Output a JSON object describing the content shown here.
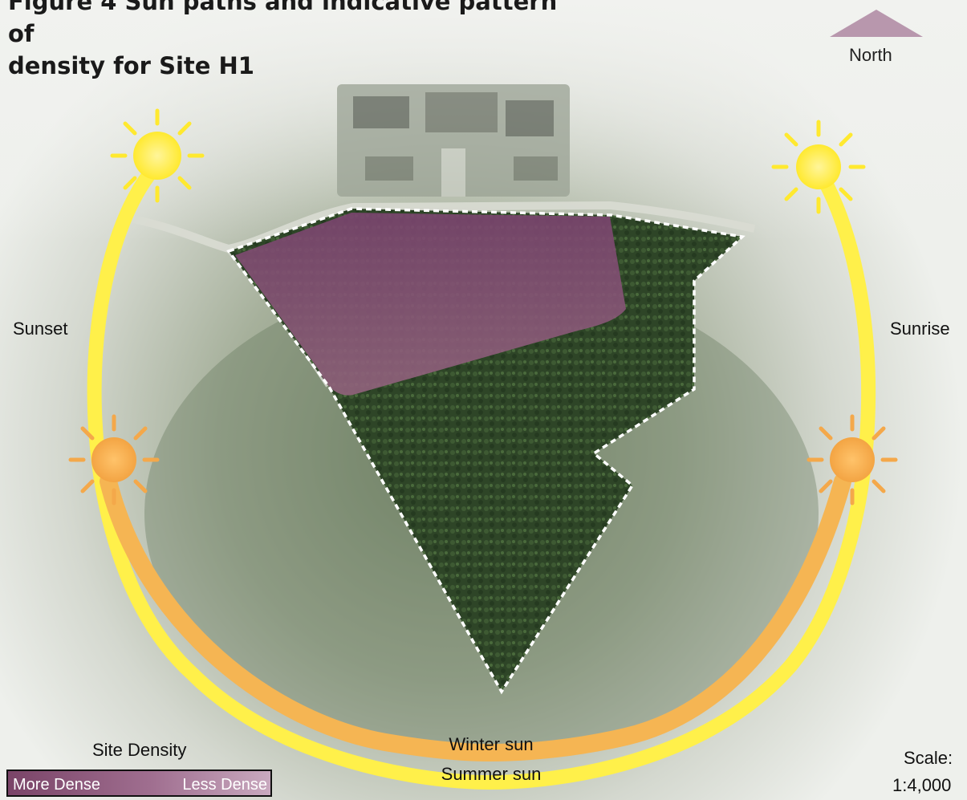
{
  "title_lines": [
    "Figure 4 Sun paths and indicative pattern of",
    "density for Site H1"
  ],
  "north": {
    "label": "North",
    "color": "#b897ad"
  },
  "sun_labels": {
    "sunset": "Sunset",
    "sunrise": "Sunrise"
  },
  "sun_paths": {
    "winter": "Winter sun",
    "summer": "Summer sun",
    "summer_color": "#fff04a",
    "winter_color": "#f5b553"
  },
  "legend": {
    "title": "Site Density",
    "more": "More Dense",
    "less": "Less Dense"
  },
  "scale": {
    "label": "Scale:",
    "value": "1:4,000"
  },
  "colors": {
    "dense_zone": "#8a4a77",
    "forest": "#2f4a28",
    "site_boundary": "#ffffff"
  }
}
